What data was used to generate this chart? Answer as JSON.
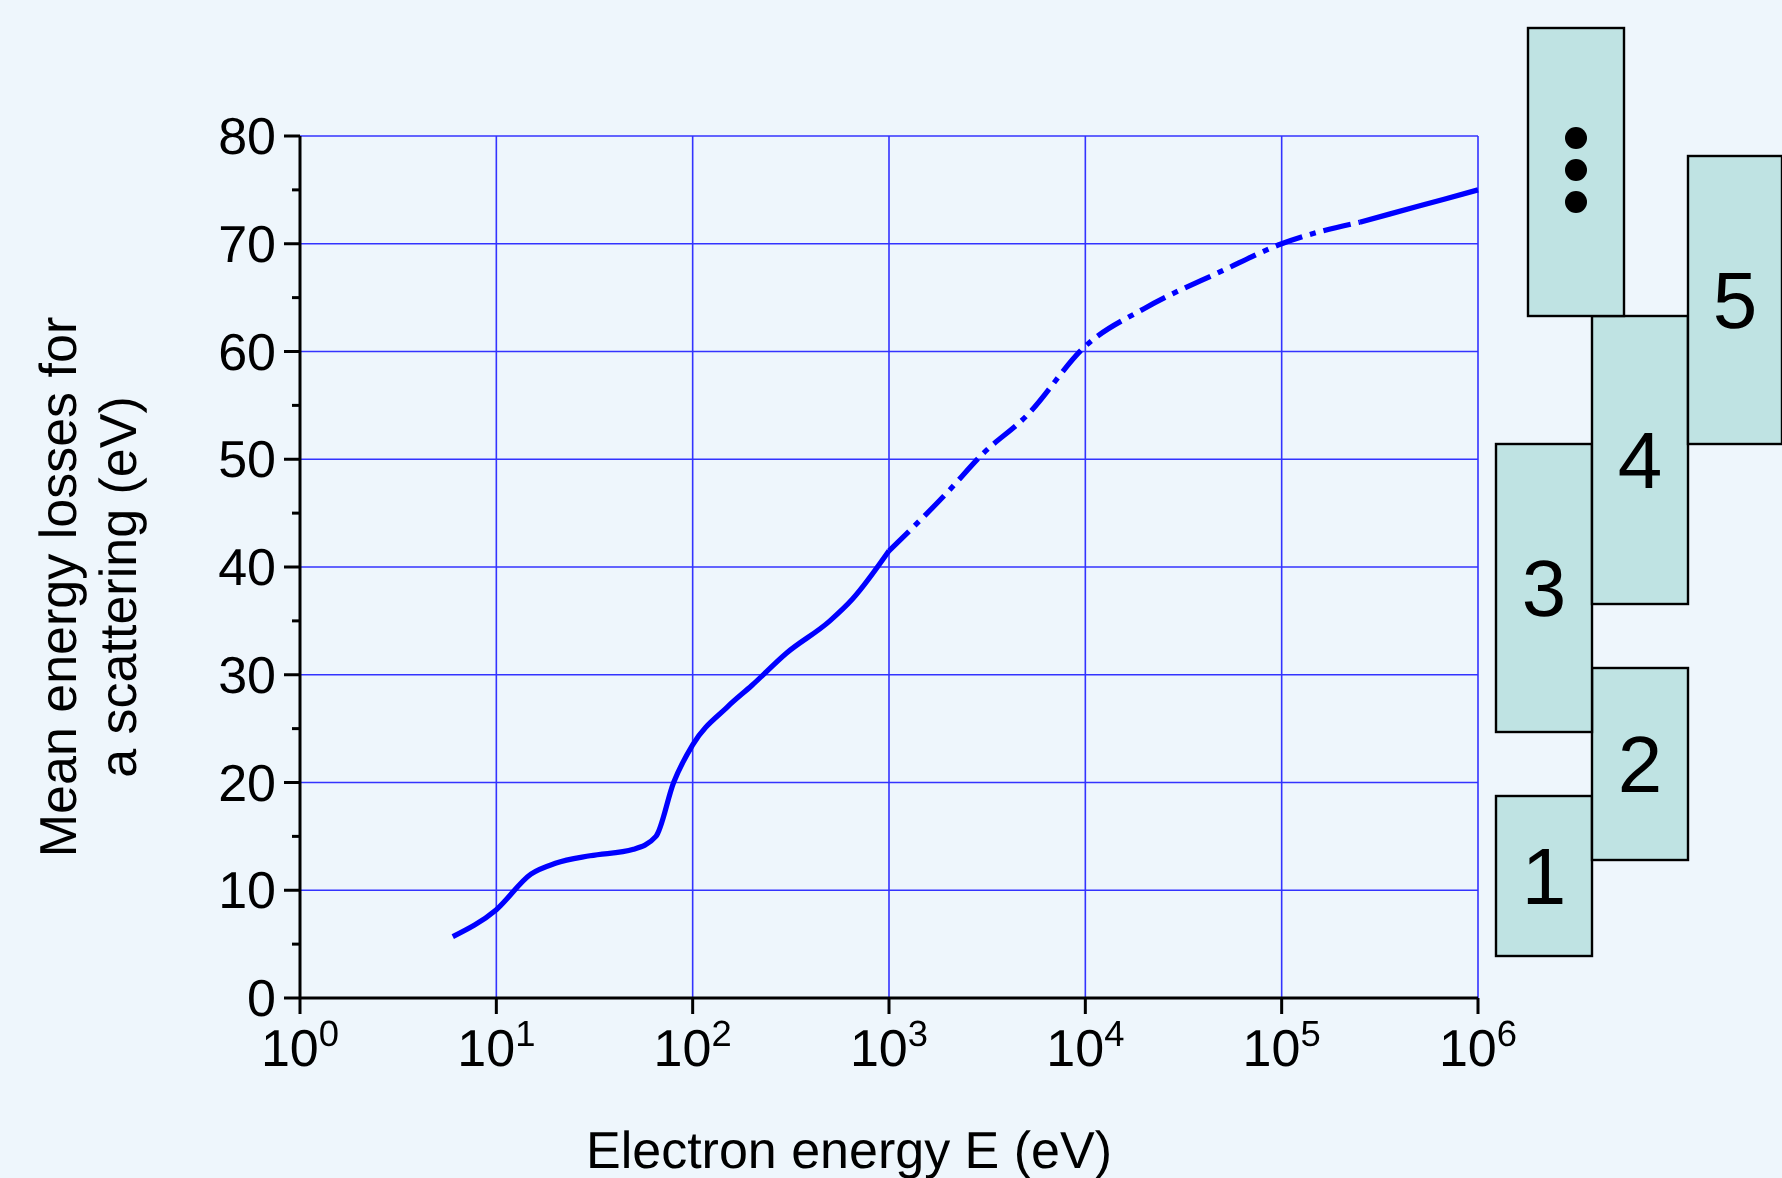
{
  "chart_data": {
    "type": "line",
    "xlabel": "Electron energy E (eV)",
    "ylabel": "Mean energy losses for a scattering (eV)",
    "log": "x",
    "grid": true,
    "xlim": [
      1,
      1000000
    ],
    "xticks": [
      {
        "value": 1,
        "label": "10$^{0}$"
      },
      {
        "value": 10,
        "label": "10$^{1}$"
      },
      {
        "value": 100,
        "label": "10$^{2}$"
      },
      {
        "value": 1000,
        "label": "10$^{3}$"
      },
      {
        "value": 10000,
        "label": "10$^{4}$"
      },
      {
        "value": 100000,
        "label": "10$^{5}$"
      },
      {
        "value": 1000000,
        "label": "10$^{6}$"
      }
    ],
    "ylim": [
      0,
      80
    ],
    "yticks": [
      0,
      {
        "value": 5,
        "label": null
      },
      10,
      {
        "value": 15,
        "label": null
      },
      20,
      {
        "value": 25,
        "label": null
      },
      30,
      {
        "value": 35,
        "label": null
      },
      40,
      {
        "value": 45,
        "label": null
      },
      50,
      {
        "value": 55,
        "label": null
      },
      60,
      {
        "value": 65,
        "label": null
      },
      70,
      {
        "value": 75,
        "label": null
      },
      80
    ],
    "series": [
      {
        "color": "#0000ff",
        "line_style": "solid",
        "x": [
          6,
          10,
          15,
          20,
          30,
          50,
          65,
          80,
          100,
          150,
          200,
          300,
          500,
          650,
          1000
        ],
        "values": [
          5.7,
          8.2,
          11.5,
          12.5,
          13.2,
          13.8,
          15,
          20,
          23.5,
          27,
          29,
          32,
          35,
          37,
          41.5
        ]
      },
      {
        "color": "#0000ff",
        "line_style": "dashed",
        "x": [
          1000,
          2000,
          3000,
          5000,
          10000,
          20000,
          50000,
          100000,
          250000
        ],
        "values": [
          41.5,
          47,
          50.5,
          54,
          60.5,
          64,
          67.5,
          70,
          72
        ]
      },
      {
        "color": "#0000ff",
        "line_style": "solid",
        "x": [
          250000,
          500000,
          1000000
        ],
        "values": [
          72,
          73.5,
          75
        ]
      }
    ],
    "annotations": [
      "1",
      "2",
      "3",
      "4",
      "5"
    ]
  }
}
